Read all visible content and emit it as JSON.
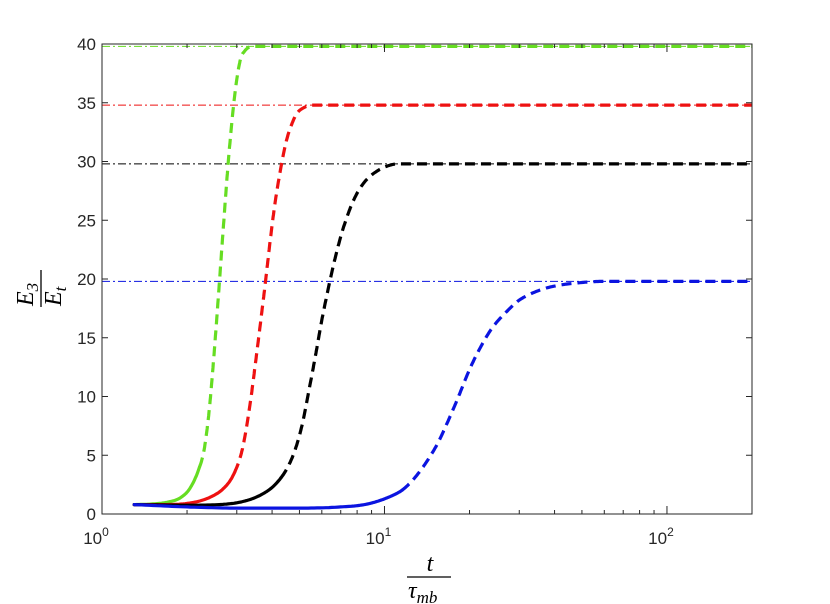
{
  "chart_data": {
    "type": "line",
    "x_scale": "log",
    "xlim": [
      1,
      200
    ],
    "ylim": [
      0,
      40
    ],
    "x_ticks": [
      {
        "value": 1,
        "base": "10",
        "exp": "0"
      },
      {
        "value": 10,
        "base": "10",
        "exp": "1"
      },
      {
        "value": 100,
        "base": "10",
        "exp": "2"
      }
    ],
    "y_ticks": [
      "0",
      "5",
      "10",
      "15",
      "20",
      "25",
      "30",
      "35",
      "40"
    ],
    "xlabel": {
      "numerator": "t",
      "denominator": "τ",
      "denominator_sub": "mb"
    },
    "ylabel": {
      "numerator": "E",
      "numerator_sub": "3",
      "denominator": "E",
      "denominator_sub": "t"
    },
    "grid": false,
    "series": [
      {
        "color": "#66dd22",
        "asymptote": 39.8,
        "x": [
          1.3,
          1.5,
          1.7,
          1.9,
          2.05,
          2.2,
          2.3,
          2.4,
          2.5,
          2.6,
          2.7,
          2.8,
          2.9,
          3.0,
          3.1,
          3.2,
          3.3,
          3.45,
          4,
          10,
          50,
          200
        ],
        "y": [
          0.8,
          0.85,
          1.0,
          1.4,
          2.2,
          3.8,
          5.5,
          9.0,
          14.0,
          19.5,
          25.0,
          30.0,
          34.0,
          37.0,
          38.8,
          39.4,
          39.7,
          39.8,
          39.8,
          39.8,
          39.8,
          39.8
        ]
      },
      {
        "color": "#ee1111",
        "asymptote": 34.8,
        "x": [
          1.3,
          1.6,
          2.0,
          2.4,
          2.7,
          2.9,
          3.1,
          3.2,
          3.35,
          3.5,
          3.65,
          3.8,
          3.95,
          4.1,
          4.3,
          4.5,
          4.7,
          4.9,
          5.2,
          5.6,
          7,
          20,
          100,
          200
        ],
        "y": [
          0.8,
          0.8,
          0.9,
          1.4,
          2.2,
          3.2,
          5.0,
          6.5,
          9.5,
          13.0,
          16.5,
          20.0,
          23.5,
          26.5,
          29.5,
          31.8,
          33.2,
          34.1,
          34.6,
          34.8,
          34.8,
          34.8,
          34.8,
          34.8
        ]
      },
      {
        "color": "#000000",
        "asymptote": 29.8,
        "x": [
          1.3,
          2.0,
          2.6,
          3.2,
          3.7,
          4.1,
          4.5,
          4.8,
          5.1,
          5.4,
          5.7,
          6.0,
          6.3,
          6.6,
          7.0,
          7.5,
          8.0,
          8.6,
          9.3,
          10.2,
          11.2,
          13,
          20,
          60,
          200
        ],
        "y": [
          0.8,
          0.75,
          0.8,
          1.1,
          1.7,
          2.5,
          3.8,
          5.3,
          7.5,
          10.5,
          13.5,
          16.5,
          19.0,
          21.2,
          23.6,
          25.8,
          27.3,
          28.4,
          29.1,
          29.6,
          29.8,
          29.8,
          29.8,
          29.8,
          29.8
        ]
      },
      {
        "color": "#0b14e0",
        "asymptote": 19.8,
        "x": [
          1.3,
          2.0,
          3.0,
          5.0,
          7.0,
          8.5,
          9.5,
          10.5,
          11.5,
          12.5,
          13.5,
          14.5,
          15.5,
          16.5,
          17.5,
          18.5,
          20,
          22,
          24,
          27,
          30,
          35,
          40,
          50,
          60,
          80,
          120,
          200
        ],
        "y": [
          0.8,
          0.6,
          0.5,
          0.5,
          0.6,
          0.8,
          1.1,
          1.5,
          2.0,
          2.8,
          3.8,
          4.9,
          6.1,
          7.5,
          8.9,
          10.3,
          12.3,
          14.3,
          15.8,
          17.2,
          18.2,
          19.0,
          19.4,
          19.7,
          19.8,
          19.8,
          19.8,
          19.8
        ]
      }
    ]
  }
}
